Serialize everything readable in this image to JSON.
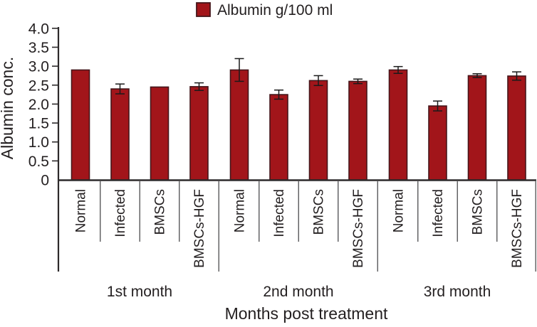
{
  "colors": {
    "bar_fill": "#A2151A",
    "bar_border": "#45161B",
    "axis": "#2D2A2B",
    "text": "#231F20",
    "separator": "#59595B",
    "error_bar": "#1A1A1A",
    "background": "#FFFFFF"
  },
  "chart_data": {
    "type": "bar",
    "title": "",
    "legend": "Albumin g/100 ml",
    "legend_position": "top-center",
    "ylabel": "Albumin conc.",
    "xlabel": "Months post treatment",
    "ylim": [
      0,
      4.0
    ],
    "ytick_step": 0.5,
    "ytick_labels": [
      "4.0",
      "3.5",
      "3.0",
      "2.5",
      "2.0",
      "1.5",
      "1.0",
      "0.5",
      "0"
    ],
    "grid": false,
    "error_bars": true,
    "categories": [
      "Normal",
      "Infected",
      "BMSCs",
      "BMSCs-HGF"
    ],
    "series": [
      {
        "group": "1st month",
        "values": [
          2.9,
          2.4,
          2.45,
          2.46
        ],
        "errors": [
          0,
          0.13,
          0,
          0.1
        ]
      },
      {
        "group": "2nd month",
        "values": [
          2.9,
          2.25,
          2.62,
          2.6
        ],
        "errors": [
          0.3,
          0.12,
          0.13,
          0.06
        ]
      },
      {
        "group": "3rd month",
        "values": [
          2.9,
          1.95,
          2.75,
          2.74
        ],
        "errors": [
          0.09,
          0.13,
          0.05,
          0.11
        ]
      }
    ]
  }
}
